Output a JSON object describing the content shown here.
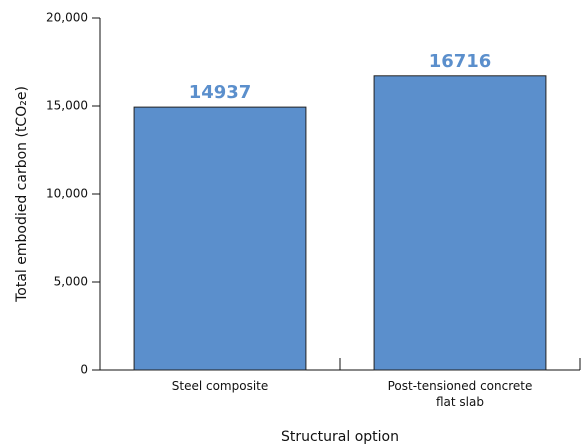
{
  "chart_data": {
    "type": "bar",
    "categories": [
      "Steel composite",
      "Post-tensioned concrete flat slab"
    ],
    "values": [
      14937,
      16716
    ],
    "color": "#5b8fcc",
    "xlabel": "Structural option",
    "ylabel": "Total embodied carbon (tCO₂e)",
    "ylim": [
      0,
      20000
    ],
    "yticks": [
      0,
      {
        "value": 5000,
        "label": "5,000"
      },
      {
        "value": 10000,
        "label": "10,000"
      },
      {
        "value": 15000,
        "label": "15,000"
      },
      {
        "value": 20000,
        "label": "20,000"
      }
    ]
  }
}
